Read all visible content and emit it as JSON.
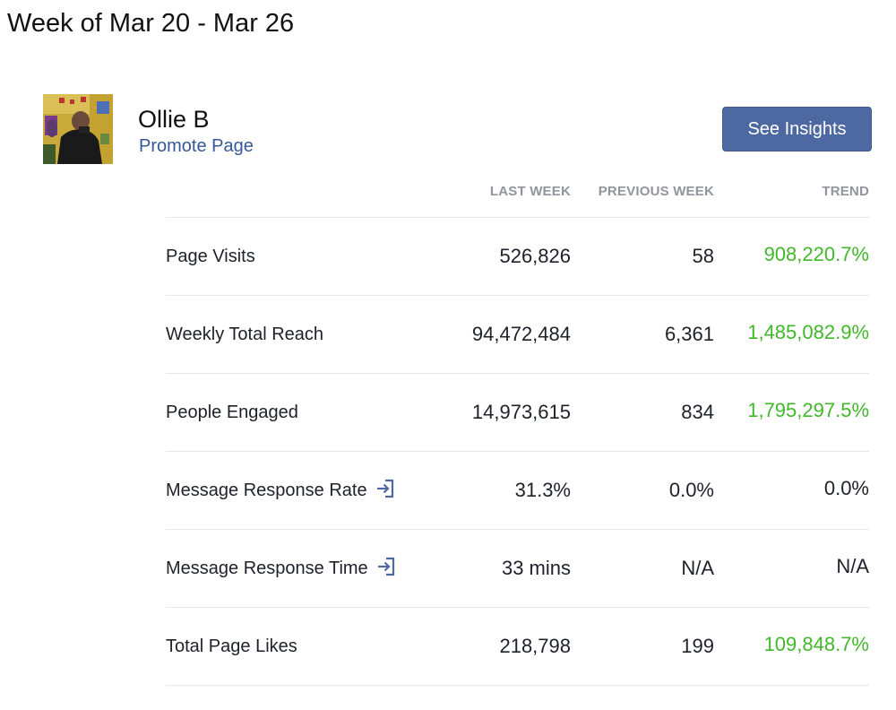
{
  "header": {
    "week_title": "Week of Mar 20 - Mar 26"
  },
  "page": {
    "name": "Ollie B",
    "promote_label": "Promote Page",
    "insights_button": "See Insights"
  },
  "table": {
    "columns": [
      "LAST WEEK",
      "PREVIOUS WEEK",
      "TREND"
    ],
    "rows": [
      {
        "metric": "Page Visits",
        "last_week": "526,826",
        "previous_week": "58",
        "trend": "908,220.7%",
        "trend_positive": true,
        "has_icon": false
      },
      {
        "metric": "Weekly Total Reach",
        "last_week": "94,472,484",
        "previous_week": "6,361",
        "trend": "1,485,082.9%",
        "trend_positive": true,
        "has_icon": false
      },
      {
        "metric": "People Engaged",
        "last_week": "14,973,615",
        "previous_week": "834",
        "trend": "1,795,297.5%",
        "trend_positive": true,
        "has_icon": false
      },
      {
        "metric": "Message Response Rate",
        "last_week": "31.3%",
        "previous_week": "0.0%",
        "trend": "0.0%",
        "trend_positive": false,
        "has_icon": true
      },
      {
        "metric": "Message Response Time",
        "last_week": "33 mins",
        "previous_week": "N/A",
        "trend": "N/A",
        "trend_positive": false,
        "has_icon": true
      },
      {
        "metric": "Total Page Likes",
        "last_week": "218,798",
        "previous_week": "199",
        "trend": "109,848.7%",
        "trend_positive": true,
        "has_icon": false
      }
    ]
  },
  "icons": {
    "message_link": "enter-arrow-icon"
  },
  "colors": {
    "positive_trend": "#42b72a",
    "neutral_text": "#1d2129",
    "link": "#365899",
    "button_bg": "#4e69a2",
    "header_text": "#90949c",
    "divider": "#e5e6e9"
  }
}
